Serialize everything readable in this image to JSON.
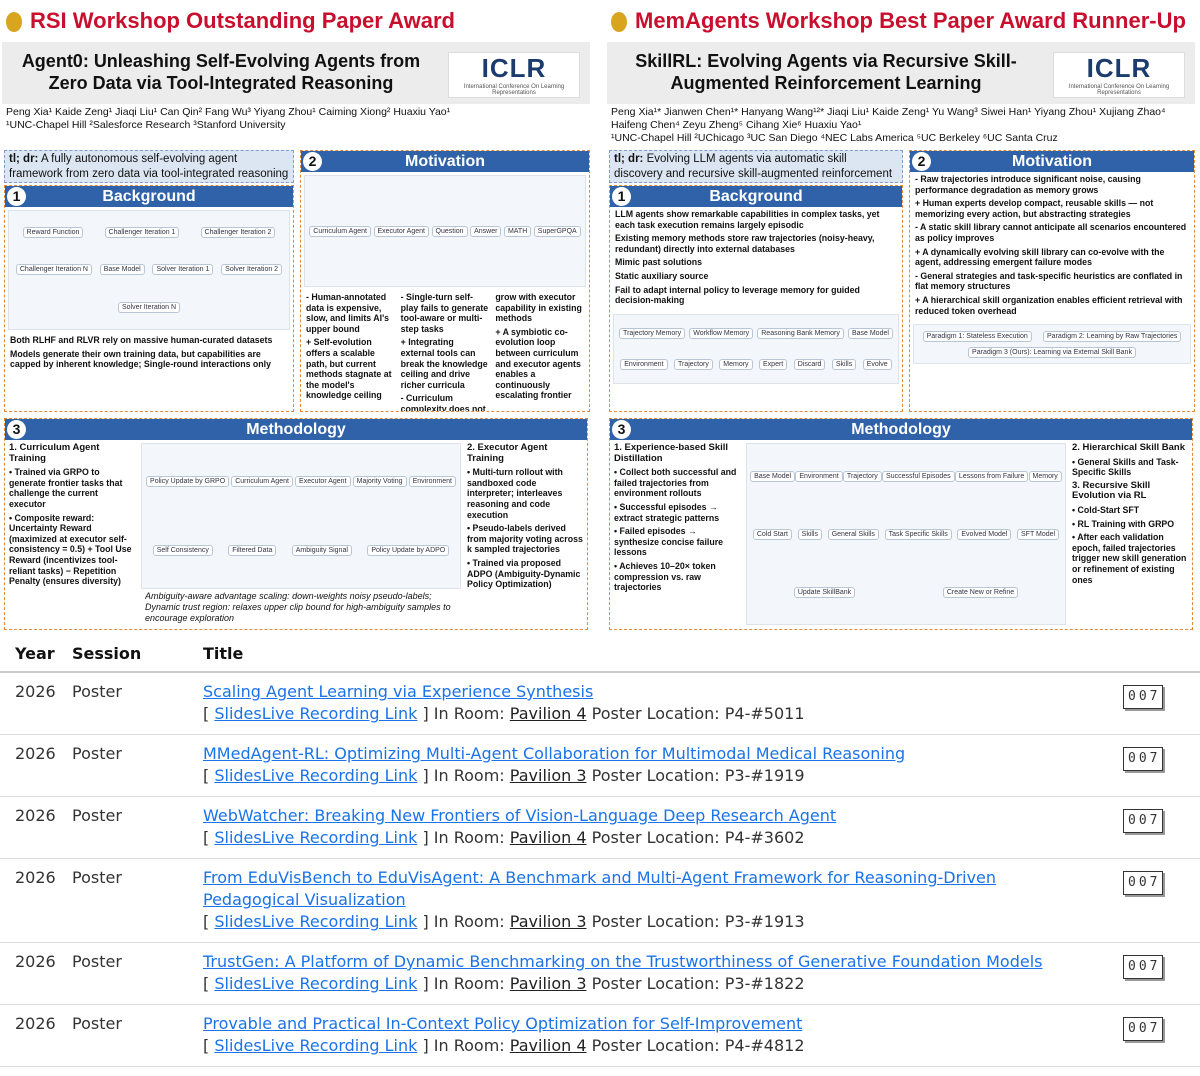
{
  "posters": [
    {
      "award": "RSI Workshop Outstanding Paper Award",
      "title": "Agent0: Unleashing Self-Evolving Agents from Zero Data via Tool-Integrated Reasoning",
      "logo": "ICLR",
      "logo_subtitle": "International Conference On Learning Representations",
      "authors": "Peng Xia¹  Kaide Zeng¹  Jiaqi Liu¹  Can Qin²  Fang Wu³  Yiyang Zhou¹  Caiming Xiong²  Huaxiu Yao¹",
      "affiliations": "¹UNC-Chapel Hill  ²Salesforce Research  ³Stanford University",
      "tldr_label": "tl; dr:",
      "tldr": "A fully autonomous self-evolving agent framework from zero data via tool-integrated reasoning",
      "background": {
        "number": "1",
        "heading": "Background",
        "paragraphs": [
          "Both RLHF and RLVR rely on massive human-curated datasets",
          "Models generate their own training data, but capabilities are capped by inherent knowledge; Single-round interactions only"
        ],
        "figure_labels": [
          "Reward Function",
          "Challenger Iteration 1",
          "Challenger Iteration 2",
          "Challenger Iteration N",
          "Base Model",
          "Solver Iteration 1",
          "Solver Iteration 2",
          "Solver Iteration N"
        ]
      },
      "motivation": {
        "number": "2",
        "heading": "Motivation",
        "paragraphs": [
          "- Human-annotated data is expensive, slow, and limits AI's upper bound",
          "+ Self-evolution offers a scalable path, but current methods stagnate at the model's knowledge ceiling",
          "- Single-turn self-play fails to generate tool-aware or multi-step tasks",
          "+ Integrating external tools can break the knowledge ceiling and drive richer curricula",
          "- Curriculum complexity does not grow with executor capability in existing methods",
          "+ A symbiotic co-evolution loop between curriculum and executor agents enables a continuously escalating frontier"
        ],
        "figure_labels": [
          "Curriculum Agent",
          "Executor Agent",
          "Question",
          "Answer",
          "MATH",
          "SuperGPQA"
        ]
      },
      "methodology": {
        "number": "3",
        "heading": "Methodology",
        "left": [
          "1. Curriculum Agent Training",
          "• Trained via GRPO to generate frontier tasks that challenge the current executor",
          "• Composite reward: Uncertainty Reward (maximized at executor self-consistency = 0.5) + Tool Use Reward (incentivizes tool-reliant tasks) − Repetition Penalty (ensures diversity)"
        ],
        "right": [
          "2. Executor Agent Training",
          "• Multi-turn rollout with sandboxed code interpreter; interleaves reasoning and code execution",
          "• Pseudo-labels derived from majority voting across k sampled trajectories",
          "• Trained via proposed ADPO (Ambiguity-Dynamic Policy Optimization)"
        ],
        "caption": "Ambiguity-aware advantage scaling: down-weights noisy pseudo-labels; Dynamic trust region: relaxes upper clip bound for high-ambiguity samples to encourage exploration",
        "figure_labels": [
          "Policy Update by GRPO",
          "Curriculum Agent",
          "Executor Agent",
          "Majority Voting",
          "Environment",
          "Self Consistency",
          "Filtered Data",
          "Ambiguity Signal",
          "Policy Update by ADPO"
        ]
      }
    },
    {
      "award": "MemAgents Workshop Best Paper Award Runner-Up",
      "title": "SkillRL: Evolving Agents via Recursive Skill-Augmented Reinforcement Learning",
      "logo": "ICLR",
      "logo_subtitle": "International Conference On Learning Representations",
      "authors": "Peng Xia¹*  Jianwen Chen¹*  Hanyang Wang¹²*  Jiaqi Liu¹  Kaide Zeng¹  Yu Wang³  Siwei Han¹  Yiyang Zhou¹  Xujiang Zhao⁴  Haifeng Chen⁴  Zeyu Zheng⁵  Cihang Xie⁶  Huaxiu Yao¹",
      "affiliations": "¹UNC-Chapel Hill  ²UChicago  ³UC San Diego  ⁴NEC Labs America  ⁵UC Berkeley  ⁶UC Santa Cruz",
      "tldr_label": "tl; dr:",
      "tldr": "Evolving LLM agents via automatic skill discovery and recursive skill-augmented reinforcement learning",
      "background": {
        "number": "1",
        "heading": "Background",
        "paragraphs": [
          "LLM agents show remarkable capabilities in complex tasks, yet each task execution remains largely episodic",
          "Existing memory methods store raw trajectories (noisy-heavy, redundant) directly into external databases",
          "Mimic past solutions",
          "Static auxiliary source",
          "Fail to adapt internal policy to leverage memory for guided decision-making"
        ],
        "figure_labels": [
          "Trajectory Memory",
          "Workflow Memory",
          "Reasoning Bank Memory",
          "Base Model",
          "Environment",
          "Trajectory",
          "Memory",
          "Expert",
          "Discard",
          "Skills",
          "Evolve"
        ]
      },
      "motivation": {
        "number": "2",
        "heading": "Motivation",
        "paragraphs": [
          "- Raw trajectories introduce significant noise, causing performance degradation as memory grows",
          "+ Human experts develop compact, reusable skills — not memorizing every action, but abstracting strategies",
          "- A static skill library cannot anticipate all scenarios encountered as policy improves",
          "+ A dynamically evolving skill library can co-evolve with the agent, addressing emergent failure modes",
          "- General strategies and task-specific heuristics are conflated in flat memory structures",
          "+ A hierarchical skill organization enables efficient retrieval with reduced token overhead"
        ],
        "figure_labels": [
          "Paradigm 1: Stateless Execution",
          "Paradigm 2: Learning by Raw Trajectories",
          "Paradigm 3 (Ours): Learning via External Skill Bank"
        ]
      },
      "methodology": {
        "number": "3",
        "heading": "Methodology",
        "left": [
          "1. Experience-based Skill Distillation",
          "• Collect both successful and failed trajectories from environment rollouts",
          "• Successful episodes → extract strategic patterns",
          "• Failed episodes → synthesize concise failure lessons",
          "• Achieves 10–20× token compression vs. raw trajectories"
        ],
        "right": [
          "2. Hierarchical Skill Bank",
          "• General Skills and Task-Specific Skills",
          "3. Recursive Skill Evolution via RL",
          "• Cold-Start SFT",
          "• RL Training with GRPO",
          "• After each validation epoch, failed trajectories trigger new skill generation or refinement of existing ones"
        ],
        "figure_labels": [
          "Base Model",
          "Environment",
          "Trajectory",
          "Successful Episodes",
          "Lessons from Failure",
          "Memory",
          "Cold Start",
          "Skills",
          "General Skills",
          "Task Specific Skills",
          "Evolved Model",
          "SFT Model",
          "Update SkillBank",
          "Create New or Refine"
        ]
      }
    }
  ],
  "table": {
    "headers": [
      "Year",
      "Session",
      "Title"
    ],
    "open_bracket": "[",
    "close_bracket": "]",
    "rows": [
      {
        "year": "2026",
        "session": "Poster",
        "title": "Scaling Agent Learning via Experience Synthesis",
        "recording": "SlidesLive Recording Link",
        "room_label": "In Room:",
        "room": "Pavilion 4",
        "location_label": "Poster Location:",
        "location": "P4-#5011",
        "counter": "007"
      },
      {
        "year": "2026",
        "session": "Poster",
        "title": "MMedAgent-RL: Optimizing Multi-Agent Collaboration for Multimodal Medical Reasoning",
        "recording": "SlidesLive Recording Link",
        "room_label": "In Room:",
        "room": "Pavilion 3",
        "location_label": "Poster Location:",
        "location": "P3-#1919",
        "counter": "007"
      },
      {
        "year": "2026",
        "session": "Poster",
        "title": "WebWatcher: Breaking New Frontiers of Vision-Language Deep Research Agent",
        "recording": "SlidesLive Recording Link",
        "room_label": "In Room:",
        "room": "Pavilion 4",
        "location_label": "Poster Location:",
        "location": "P4-#3602",
        "counter": "007"
      },
      {
        "year": "2026",
        "session": "Poster",
        "title": "From EduVisBench to EduVisAgent: A Benchmark and Multi-Agent Framework for Reasoning-Driven Pedagogical Visualization",
        "recording": "SlidesLive Recording Link",
        "room_label": "In Room:",
        "room": "Pavilion 3",
        "location_label": "Poster Location:",
        "location": "P3-#1913",
        "counter": "007"
      },
      {
        "year": "2026",
        "session": "Poster",
        "title": "TrustGen: A Platform of Dynamic Benchmarking on the Trustworthiness of Generative Foundation Models",
        "recording": "SlidesLive Recording Link",
        "room_label": "In Room:",
        "room": "Pavilion 3",
        "location_label": "Poster Location:",
        "location": "P3-#1822",
        "counter": "007"
      },
      {
        "year": "2026",
        "session": "Poster",
        "title": "Provable and Practical In-Context Policy Optimization for Self-Improvement",
        "recording": "SlidesLive Recording Link",
        "room_label": "In Room:",
        "room": "Pavilion 4",
        "location_label": "Poster Location:",
        "location": "P4-#4812",
        "counter": "007"
      }
    ]
  }
}
